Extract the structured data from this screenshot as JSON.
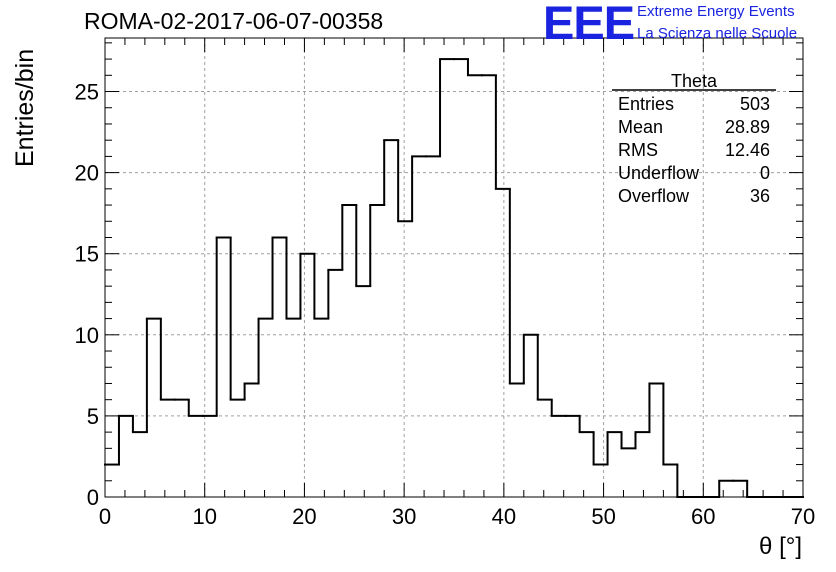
{
  "header": {
    "title": "ROMA-02-2017-06-07-00358",
    "logo_text": "EEE",
    "logo_line1": "Extreme Energy Events",
    "logo_line2": "La Scienza nelle Scuole"
  },
  "stats": {
    "name": "Theta",
    "rows": [
      {
        "label": "Entries",
        "value": "503"
      },
      {
        "label": "Mean",
        "value": "28.89"
      },
      {
        "label": "RMS",
        "value": "12.46"
      },
      {
        "label": "Underflow",
        "value": "0"
      },
      {
        "label": "Overflow",
        "value": "36"
      }
    ]
  },
  "colors": {
    "logo": "#1a24e0",
    "line": "#000000",
    "grid": "#a0a0a0"
  },
  "chart_data": {
    "type": "bar",
    "histogram": true,
    "title": "ROMA-02-2017-06-07-00358",
    "xlabel": "θ [°]",
    "ylabel": "Entries/bin",
    "xlim": [
      0,
      70
    ],
    "ylim": [
      0,
      28.3
    ],
    "bin_width": 1.4,
    "x_ticks": [
      0,
      10,
      20,
      30,
      40,
      50,
      60,
      70
    ],
    "y_ticks": [
      0,
      5,
      10,
      15,
      20,
      25
    ],
    "grid": true,
    "values": [
      2,
      5,
      4,
      11,
      6,
      6,
      5,
      5,
      16,
      6,
      7,
      11,
      16,
      11,
      15,
      11,
      14,
      18,
      13,
      18,
      22,
      17,
      21,
      21,
      27,
      27,
      26,
      26,
      19,
      7,
      10,
      6,
      5,
      5,
      4,
      2,
      4,
      3,
      4,
      7,
      2,
      0,
      0,
      0,
      1,
      1,
      0,
      0,
      0,
      0
    ]
  }
}
